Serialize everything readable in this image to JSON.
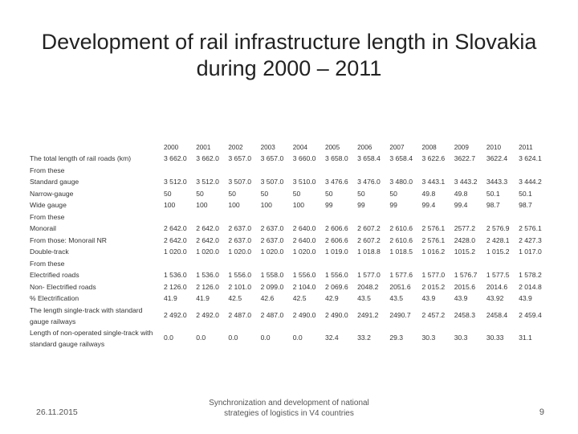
{
  "title": {
    "line1": "Development of rail infrastructure length in Slovakia",
    "line2": "during 2000 – 2011"
  },
  "years": [
    "2000",
    "2001",
    "2002",
    "2003",
    "2004",
    "2005",
    "2006",
    "2007",
    "2008",
    "2009",
    "2010",
    "2011"
  ],
  "rows": {
    "total": {
      "label": "The total length of rail roads (km)",
      "values": [
        "3 662.0",
        "3 662.0",
        "3 657.0",
        "3 657.0",
        "3 660.0",
        "3 658.0",
        "3 658.4",
        "3 658.4",
        "3 622.6",
        "3622.7",
        "3622.4",
        "3 624.1"
      ]
    },
    "from_these_1": {
      "label": "From these"
    },
    "standard": {
      "label": "Standard gauge",
      "values": [
        "3 512.0",
        "3 512.0",
        "3 507.0",
        "3 507.0",
        "3 510.0",
        "3 476.6",
        "3 476.0",
        "3 480.0",
        "3 443.1",
        "3 443.2",
        "3443.3",
        "3 444.2"
      ]
    },
    "narrow": {
      "label": "Narrow-gauge",
      "values": [
        "50",
        "50",
        "50",
        "50",
        "50",
        "50",
        "50",
        "50",
        "49.8",
        "49.8",
        "50.1",
        "50.1"
      ]
    },
    "wide": {
      "label": "Wide gauge",
      "values": [
        "100",
        "100",
        "100",
        "100",
        "100",
        "99",
        "99",
        "99",
        "99.4",
        "99.4",
        "98.7",
        "98.7"
      ]
    },
    "from_these_2": {
      "label": "From these"
    },
    "monorail": {
      "label": "Monorail",
      "values": [
        "2 642.0",
        "2 642.0",
        "2 637.0",
        "2 637.0",
        "2 640.0",
        "2 606.6",
        "2 607.2",
        "2 610.6",
        "2 576.1",
        "2577.2",
        "2 576.9",
        "2 576.1"
      ]
    },
    "monorail_nr": {
      "label": "From those: Monorail NR",
      "values": [
        "2 642.0",
        "2 642.0",
        "2 637.0",
        "2 637.0",
        "2 640.0",
        "2 606.6",
        "2 607.2",
        "2 610.6",
        "2 576.1",
        "2428.0",
        "2 428.1",
        "2 427.3"
      ]
    },
    "double": {
      "label": "Double-track",
      "values": [
        "1 020.0",
        "1 020.0",
        "1 020.0",
        "1 020.0",
        "1 020.0",
        "1 019.0",
        "1 018.8",
        "1 018.5",
        "1 016.2",
        "1015.2",
        "1 015.2",
        "1 017.0"
      ]
    },
    "from_these_3": {
      "label": "From these"
    },
    "electrified": {
      "label": "Electrified roads",
      "values": [
        "1 536.0",
        "1 536.0",
        "1 556.0",
        "1 558.0",
        "1 556.0",
        "1 556.0",
        "1 577.0",
        "1 577.6",
        "1 577.0",
        "1 576.7",
        "1 577.5",
        "1 578.2"
      ]
    },
    "non_electrified": {
      "label": "Non- Electrified roads",
      "values": [
        "2 126.0",
        "2 126.0",
        "2 101.0",
        "2 099.0",
        "2 104.0",
        "2 069.6",
        "2048.2",
        "2051.6",
        "2 015.2",
        "2015.6",
        "2014.6",
        "2 014.8"
      ]
    },
    "pct_electrification": {
      "label": "% Electrification",
      "values": [
        "41.9",
        "41.9",
        "42.5",
        "42.6",
        "42.5",
        "42.9",
        "43.5",
        "43.5",
        "43.9",
        "43.9",
        "43.92",
        "43.9"
      ]
    },
    "single_track": {
      "label": "The length single-track with standard gauge railways",
      "values": [
        "2 492.0",
        "2 492.0",
        "2 487.0",
        "2 487.0",
        "2 490.0",
        "2 490.0",
        "2491.2",
        "2490.7",
        "2 457.2",
        "2458.3",
        "2458.4",
        "2 459.4"
      ]
    },
    "non_operated": {
      "label": "Length of non-operated single-track with standard gauge railways",
      "values": [
        "0.0",
        "0.0",
        "0.0",
        "0.0",
        "0.0",
        "32.4",
        "33.2",
        "29.3",
        "30.3",
        "30.3",
        "30.33",
        "31.1"
      ]
    }
  },
  "footer": {
    "date": "26.11.2015",
    "center": "Synchronization and development of national strategies of logistics in V4 countries",
    "page": "9"
  }
}
